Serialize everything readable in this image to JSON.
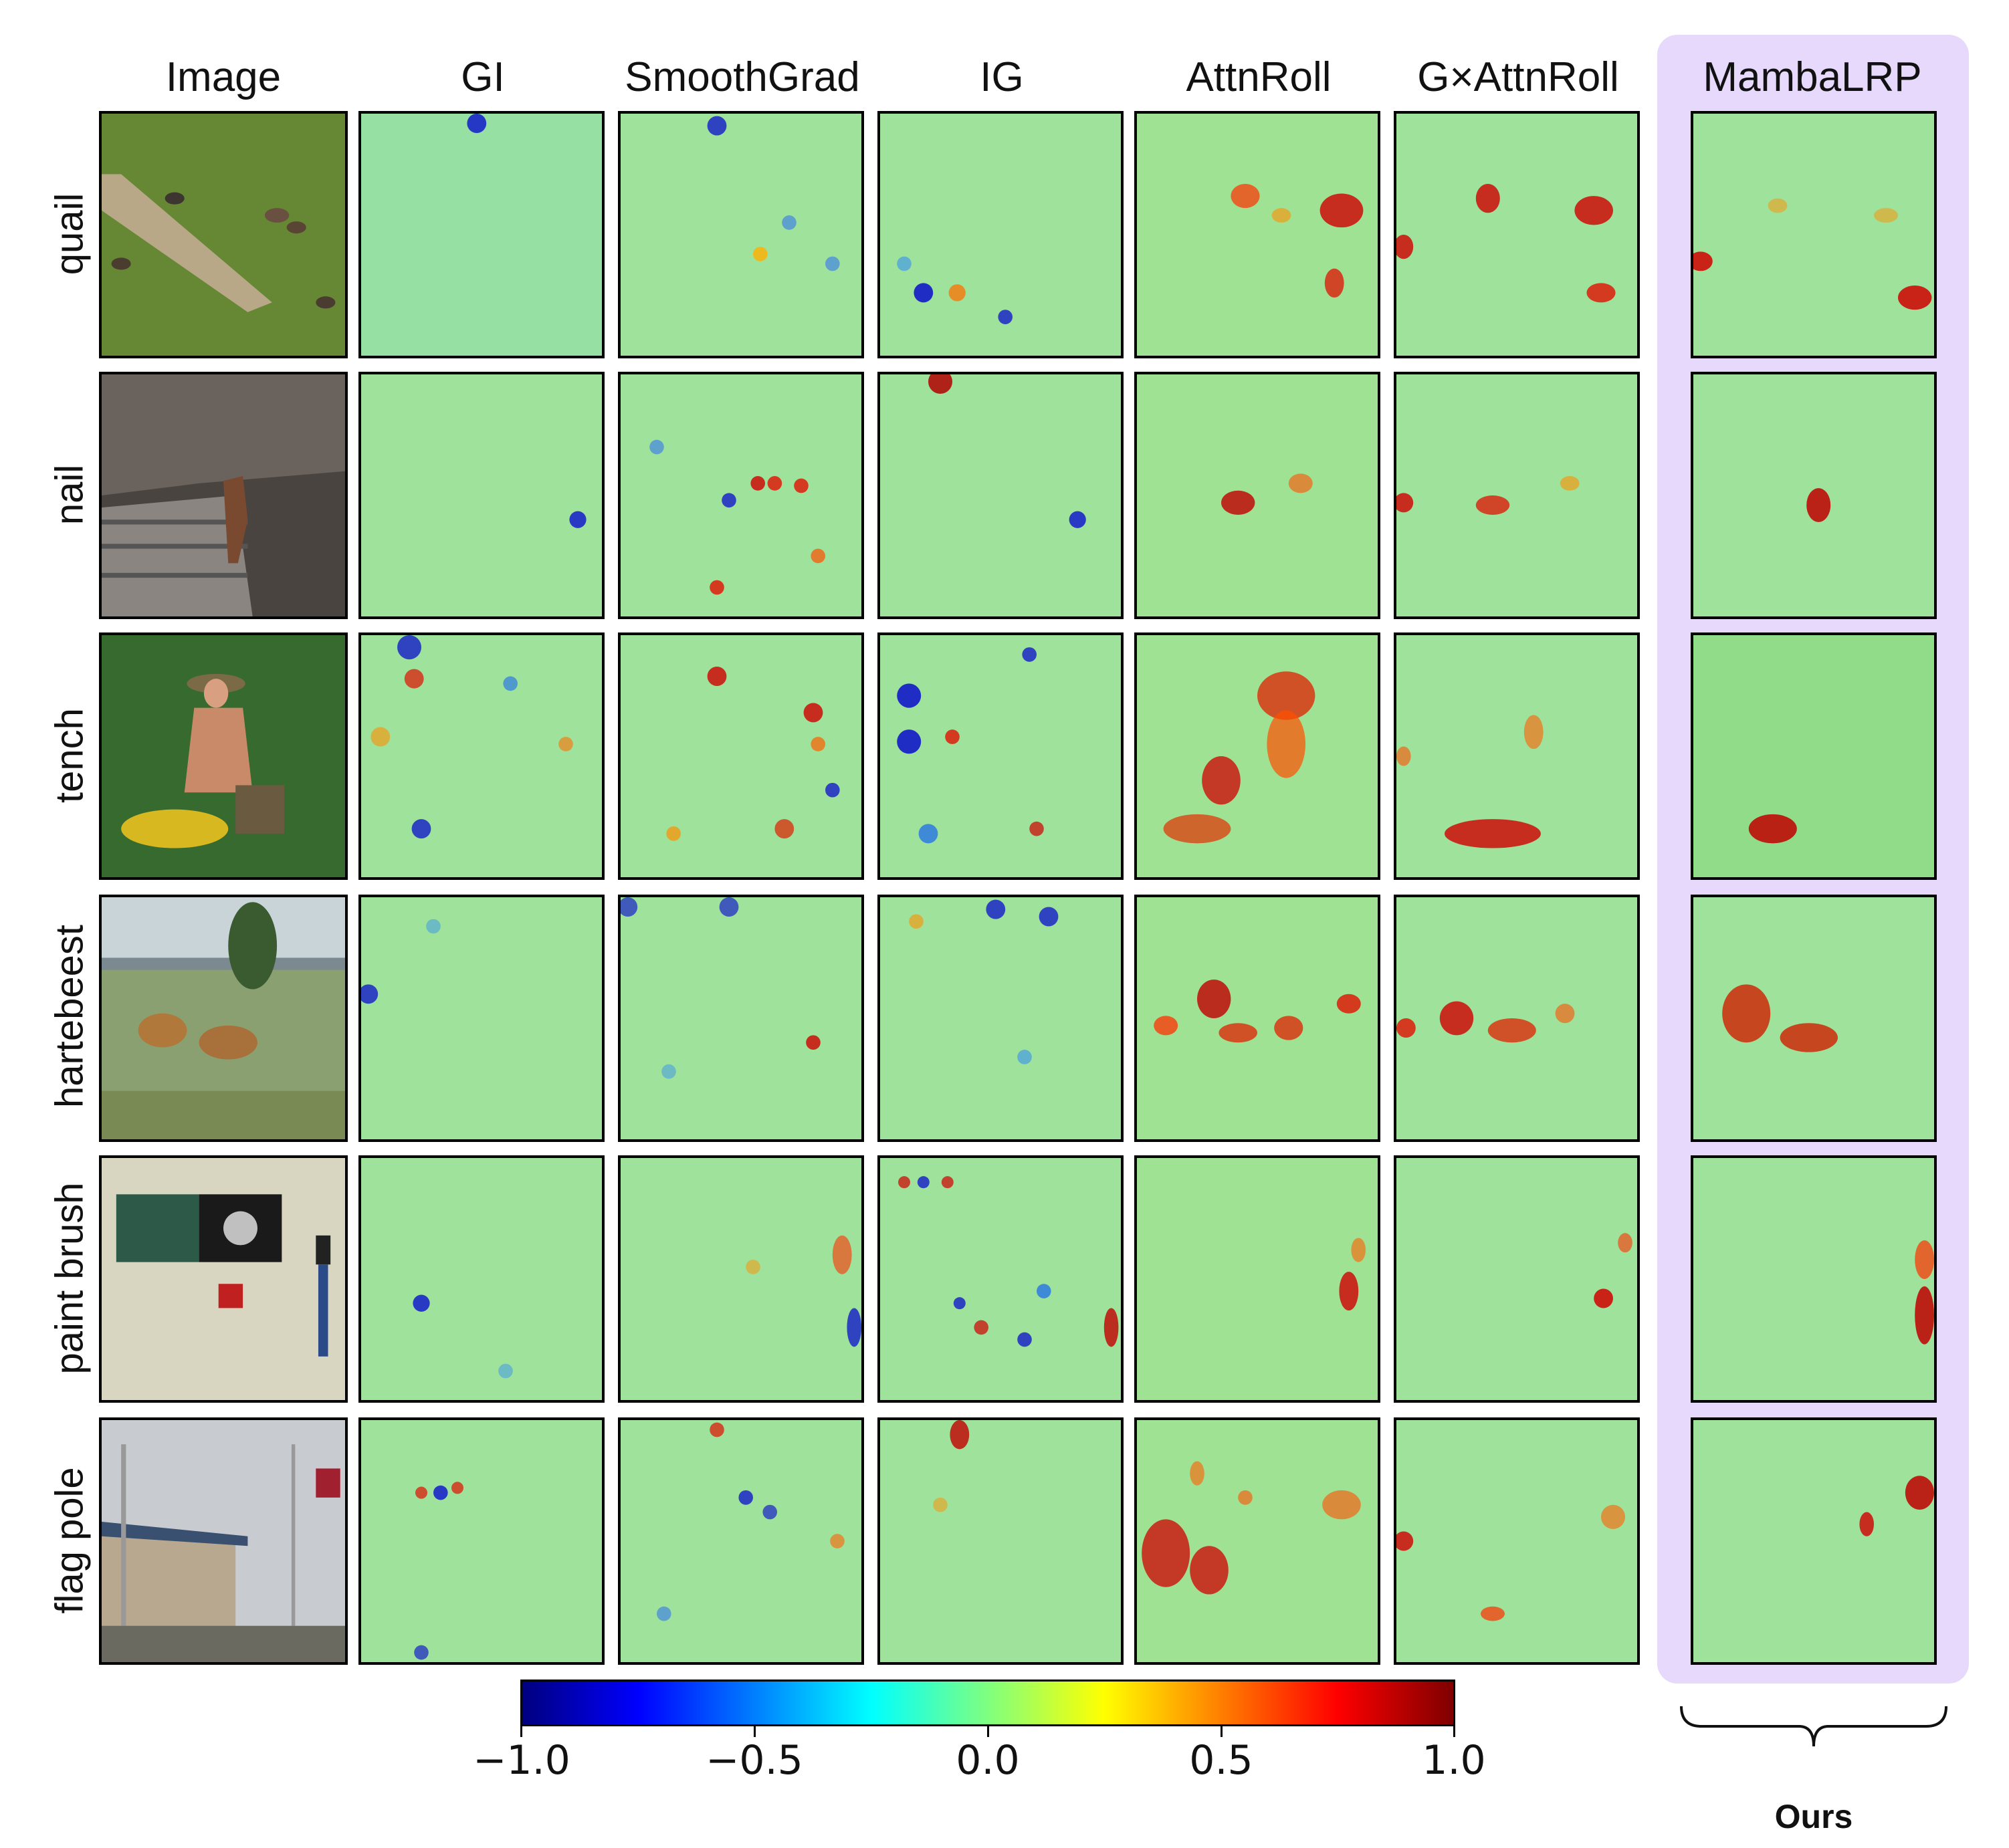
{
  "figure": {
    "column_headers": [
      "Image",
      "GI",
      "SmoothGrad",
      "IG",
      "AttnRoll",
      "G×AttnRoll",
      "MambaLRP"
    ],
    "row_labels": [
      "quail",
      "nail",
      "tench",
      "hartebeest",
      "paint brush",
      "flag pole"
    ],
    "highlighted_method": "MambaLRP",
    "ours_label": "Ours"
  },
  "colorbar": {
    "min": -1.0,
    "max": 1.0,
    "ticks": [
      -1.0,
      -0.5,
      0.0,
      0.5,
      1.0
    ],
    "tick_labels": [
      "−1.0",
      "−0.5",
      "0.0",
      "0.5",
      "1.0"
    ],
    "colormap": "jet"
  },
  "colors": {
    "highlight_bg": "#e6d9fb",
    "heat_base": "#8fe18a",
    "positive": "#d50000",
    "negative": "#0000d0"
  }
}
